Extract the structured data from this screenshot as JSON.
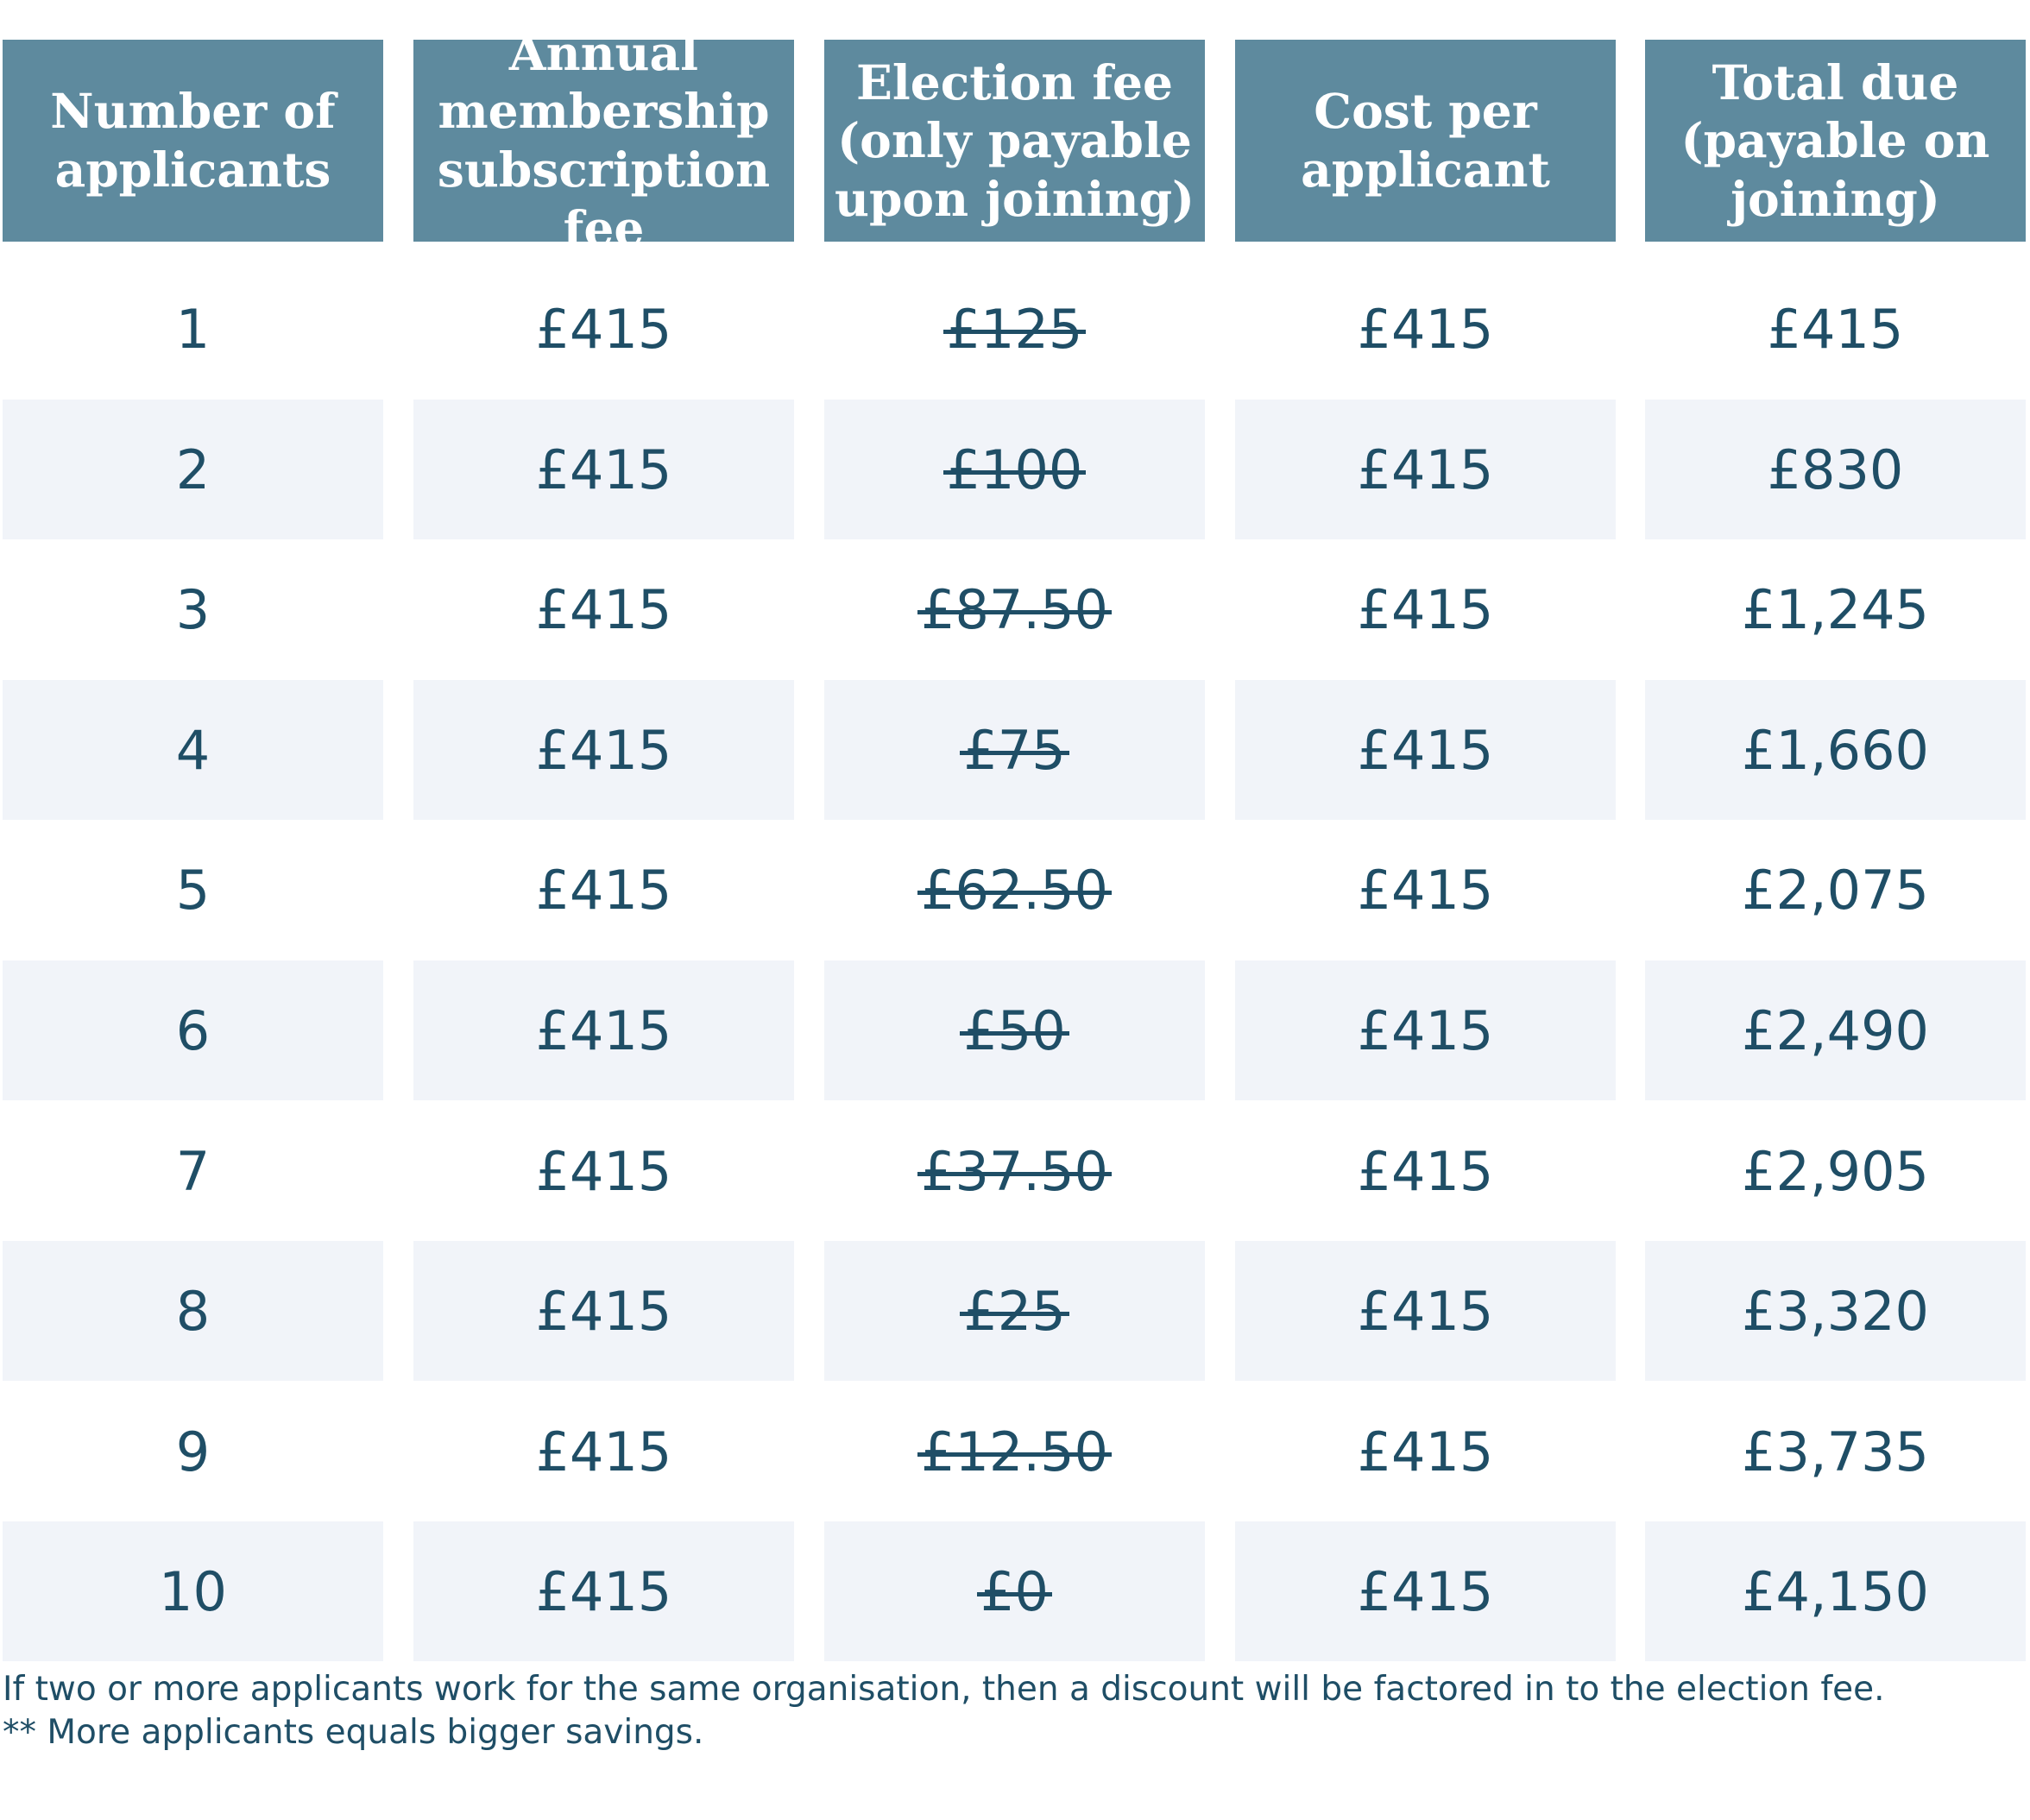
{
  "table": {
    "headers": [
      "Number of applicants",
      "Annual membership subscription fee",
      "Election fee (only payable upon joining)",
      "Cost per applicant",
      "Total due (payable on joining)"
    ],
    "rows": [
      {
        "applicants": "1",
        "annual_fee": "£415",
        "election_fee": "£125",
        "cost_per_applicant": "£415",
        "total_due": "£415"
      },
      {
        "applicants": "2",
        "annual_fee": "£415",
        "election_fee": "£100",
        "cost_per_applicant": "£415",
        "total_due": "£830"
      },
      {
        "applicants": "3",
        "annual_fee": "£415",
        "election_fee": "£87.50",
        "cost_per_applicant": "£415",
        "total_due": "£1,245"
      },
      {
        "applicants": "4",
        "annual_fee": "£415",
        "election_fee": "£75",
        "cost_per_applicant": "£415",
        "total_due": "£1,660"
      },
      {
        "applicants": "5",
        "annual_fee": "£415",
        "election_fee": "£62.50",
        "cost_per_applicant": "£415",
        "total_due": "£2,075"
      },
      {
        "applicants": "6",
        "annual_fee": "£415",
        "election_fee": "£50",
        "cost_per_applicant": "£415",
        "total_due": "£2,490"
      },
      {
        "applicants": "7",
        "annual_fee": "£415",
        "election_fee": "£37.50",
        "cost_per_applicant": "£415",
        "total_due": "£2,905"
      },
      {
        "applicants": "8",
        "annual_fee": "£415",
        "election_fee": "£25",
        "cost_per_applicant": "£415",
        "total_due": "£3,320"
      },
      {
        "applicants": "9",
        "annual_fee": "£415",
        "election_fee": "£12.50",
        "cost_per_applicant": "£415",
        "total_due": "£3,735"
      },
      {
        "applicants": "10",
        "annual_fee": "£415",
        "election_fee": "£0",
        "cost_per_applicant": "£415",
        "total_due": "£4,150"
      }
    ]
  },
  "footnotes": {
    "discount_note": "If two or more applicants work for the same organisation, then a discount will be factored in to the election fee.",
    "savings_note": "** More applicants equals bigger savings."
  },
  "colors": {
    "header_background": "#5e8a9e",
    "header_text": "#ffffff",
    "body_text": "#1f4e66",
    "stripe_background": "#f1f4f9"
  }
}
